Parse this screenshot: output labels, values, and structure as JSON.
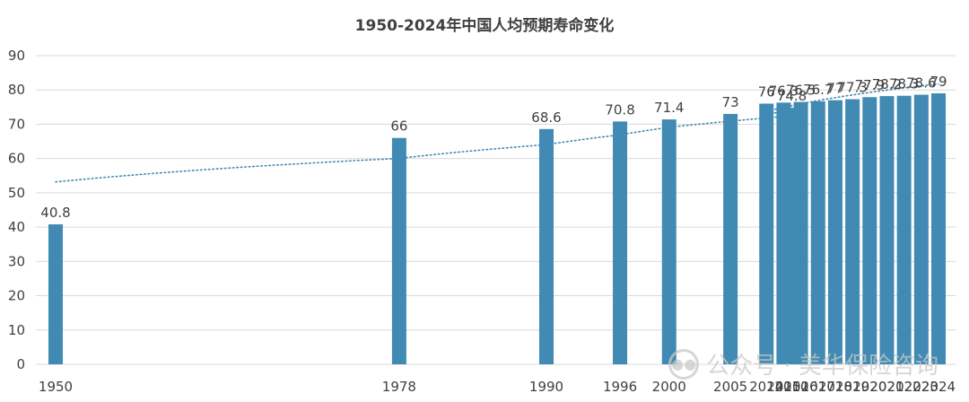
{
  "chart_data": {
    "type": "bar",
    "title": "1950-2024年中国人均预期寿命变化",
    "xlabel": "",
    "ylabel": "",
    "ylim": [
      0,
      90
    ],
    "yticks": [
      "0",
      "10",
      "20",
      "30",
      "40",
      "50",
      "60",
      "70",
      "80",
      "90"
    ],
    "categories": [
      "1950",
      "1978",
      "1990",
      "1996",
      "2000",
      "2005",
      "2010",
      "2014",
      "2015",
      "2016",
      "2017",
      "2018",
      "2019",
      "2020",
      "2021",
      "2022",
      "2023",
      "2024"
    ],
    "values": [
      40.8,
      66,
      68.6,
      70.8,
      71.4,
      73,
      74.8,
      76,
      76.3,
      76.5,
      76.7,
      77,
      77.3,
      77.9,
      78.2,
      78.3,
      78.6,
      79
    ],
    "value_labels": [
      "40.8",
      "66",
      "68.6",
      "70.8",
      "71.4",
      "73",
      "74.8",
      "76",
      "76.3",
      "76.5",
      "76.7",
      "77",
      "77.3",
      "77.9",
      "78.2",
      "78.3",
      "78.6",
      "79"
    ],
    "grid": true,
    "trendline": "logarithmic",
    "colors": {
      "bar": "#418ab3",
      "trend": "#418ab3",
      "grid": "#d9d9d9",
      "text": "#404040"
    }
  },
  "watermark": {
    "text": "公众号 · 美华保险咨询",
    "icon": "wechat-icon"
  }
}
